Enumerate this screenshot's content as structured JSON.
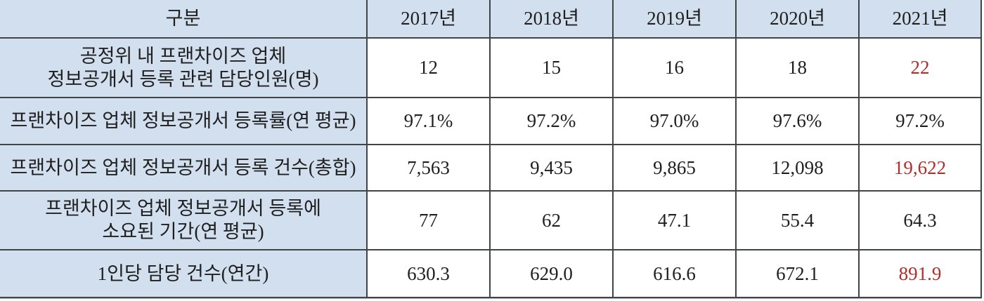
{
  "chart_data": {
    "type": "table",
    "title": "",
    "columns": [
      "구분",
      "2017년",
      "2018년",
      "2019년",
      "2020년",
      "2021년"
    ],
    "rows": [
      {
        "label": "공정위 내 프랜차이즈 업체\n정보공개서 등록 관련 담당인원(명)",
        "values": [
          "12",
          "15",
          "16",
          "18",
          "22"
        ]
      },
      {
        "label": "프랜차이즈 업체 정보공개서 등록률(연 평균)",
        "values": [
          "97.1%",
          "97.2%",
          "97.0%",
          "97.6%",
          "97.2%"
        ]
      },
      {
        "label": "프랜차이즈 업체 정보공개서 등록 건수(총합)",
        "values": [
          "7,563",
          "9,435",
          "9,865",
          "12,098",
          "19,622"
        ]
      },
      {
        "label": "프랜차이즈 업체 정보공개서 등록에\n소요된 기간(연 평균)",
        "values": [
          "77",
          "62",
          "47.1",
          "55.4",
          "64.3"
        ]
      },
      {
        "label": "1인당 담당 건수(연간)",
        "values": [
          "630.3",
          "629.0",
          "616.6",
          "672.1",
          "891.9"
        ]
      }
    ],
    "highlighted_cells": [
      [
        0,
        4
      ],
      [
        2,
        4
      ],
      [
        4,
        4
      ]
    ],
    "colors": {
      "header_bg": "#d2dfee",
      "border": "#3f4447",
      "text": "#1f1f1f",
      "highlight": "#b02f28"
    },
    "layout": {
      "legend": "none",
      "grid": "full-borders",
      "header_row_and_first_column_shaded": true
    }
  }
}
